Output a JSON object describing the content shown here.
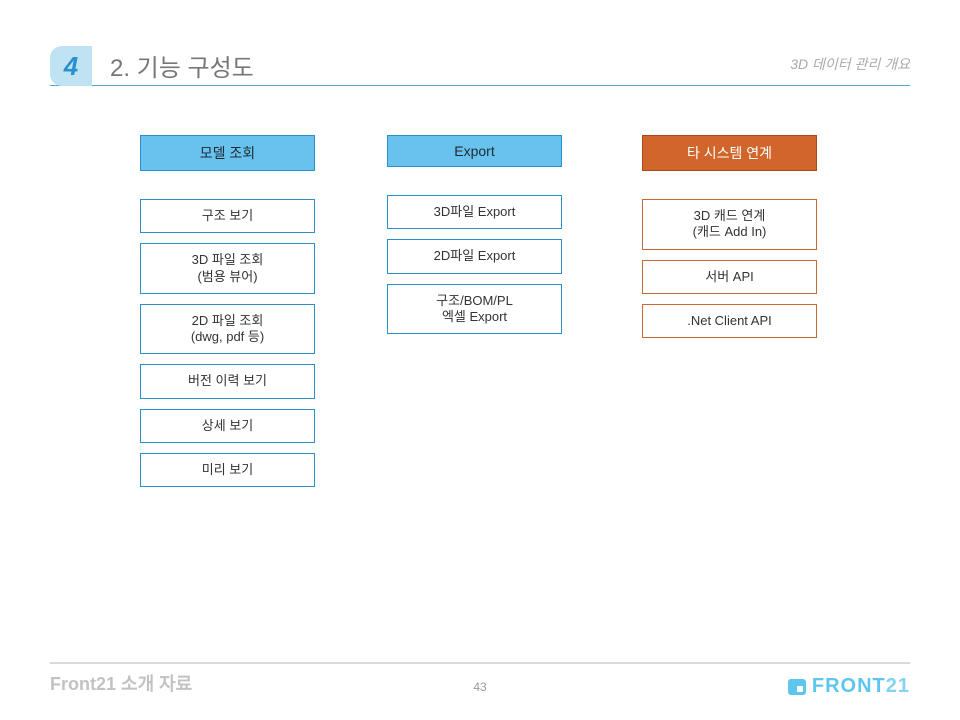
{
  "header": {
    "badge_number": "4",
    "title": "2. 기능 구성도",
    "subtitle": "3D 데이터 관리 개요",
    "accent_color": "#4ea8d8",
    "badge_bg": "#bfe3f2",
    "title_color": "#777777",
    "subtitle_color": "#aaaaaa"
  },
  "columns": [
    {
      "id": "model-view",
      "header": "모델 조회",
      "header_style": "blue",
      "item_style": "blue",
      "items": [
        "구조 보기",
        "3D 파일 조회\n(범용 뷰어)",
        "2D 파일 조회\n(dwg, pdf 등)",
        "버전 이력 보기",
        "상세 보기",
        "미리 보기"
      ]
    },
    {
      "id": "export",
      "header": "Export",
      "header_style": "blue",
      "item_style": "blue",
      "items": [
        "3D파일 Export",
        "2D파일 Export",
        "구조/BOM/PL\n엑셀 Export"
      ]
    },
    {
      "id": "integration",
      "header": "타 시스템 연계",
      "header_style": "orange",
      "item_style": "orange",
      "items": [
        "3D 캐드 연계\n(캐드 Add In)",
        "서버 API",
        ".Net Client API"
      ]
    }
  ],
  "styles": {
    "blue_header_bg": "#68c2ed",
    "blue_border": "#2a8fcf",
    "orange_header_bg": "#d0662b",
    "orange_border": "#c86a33",
    "box_bg": "#ffffff",
    "box_fontsize": 13,
    "header_fontsize": 14
  },
  "footer": {
    "left_text": "Front21 소개 자료",
    "page_number": "43",
    "logo_main": "FRONT",
    "logo_suffix": "21",
    "rule_color": "#d9d9d9",
    "left_color": "#c2c2c2",
    "logo_color": "#5ec5ef"
  }
}
